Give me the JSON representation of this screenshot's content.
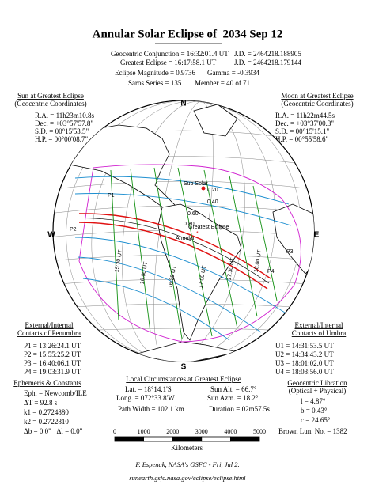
{
  "title": "Annular Solar Eclipse of  2034 Sep 12",
  "header": {
    "conjunction": "Geocentric Conjunction = 16:32:01.4 UT",
    "conjunction_jd": "J.D. = 2464218.188905",
    "greatest": "Greatest Eclipse = 16:17:58.1 UT",
    "greatest_jd": "J.D. = 2464218.179144",
    "magnitude": "Eclipse Magnitude = 0.9736",
    "gamma": "Gamma = -0.3934",
    "saros": "Saros Series = 135",
    "member": "Member = 40 of 71"
  },
  "sun": {
    "title": "Sun at Greatest Eclipse",
    "subtitle": "(Geocentric Coordinates)",
    "lines": [
      "R.A. = 11h23m10.8s",
      "Dec. = +03°57'57.8\"",
      "S.D. = 00°15'53.5\"",
      "H.P. = 00°00'08.7\""
    ]
  },
  "moon": {
    "title": "Moon at Greatest Eclipse",
    "subtitle": "(Geocentric Coordinates)",
    "lines": [
      "R.A. = 11h22m44.5s",
      "Dec. = +03°37'00.3\"",
      "S.D. = 00°15'15.1\"",
      "H.P. = 00°55'58.6\""
    ]
  },
  "compass": {
    "n": "N",
    "s": "S",
    "e": "E",
    "w": "W"
  },
  "map_labels": {
    "sub_solar": "Sub Solar",
    "greatest": "Greatest Eclipse",
    "annular": "Annular",
    "p1": "P1",
    "p2": "P2",
    "p3": "P3",
    "p4": "P4",
    "times": [
      "15:30 UT",
      "16:00 UT",
      "16:30 UT",
      "17:00 UT",
      "17:30 UT",
      "18:00 UT"
    ],
    "magnitudes": [
      "0.20",
      "0.40",
      "0.60",
      "0.80"
    ]
  },
  "penumbra": {
    "title": "External/Internal",
    "subtitle": "Contacts of Penumbra",
    "lines": [
      "P1 = 13:26:24.1 UT",
      "P2 = 15:55:25.2 UT",
      "P3 = 16:40:06.1 UT",
      "P4 = 19:03:31.9 UT"
    ]
  },
  "umbra": {
    "title": "External/Internal",
    "subtitle": "Contacts of Umbra",
    "lines": [
      "U1 = 14:31:53.5 UT",
      "U2 = 14:34:43.2 UT",
      "U3 = 18:01:02.0 UT",
      "U4 = 18:03:56.0 UT"
    ]
  },
  "local": {
    "title": "Local Circumstances at Greatest Eclipse",
    "lat": "Lat. = 18°14.1'S",
    "sun_alt": "Sun Alt. = 66.7°",
    "long": "Long. = 072°33.8'W",
    "sun_azm": "Sun Azm. = 18.2°",
    "path_width": "Path Width = 102.1 km",
    "duration": "Duration = 02m57.5s"
  },
  "ephemeris": {
    "title": "Ephemeris & Constants",
    "lines": [
      "Eph. = Newcomb/ILE",
      "ΔT = 92.8 s",
      "k1 = 0.2724880",
      "k2 = 0.2722810",
      "Δb = 0.0\"   Δl = 0.0\""
    ]
  },
  "libration": {
    "title": "Geocentric Libration",
    "subtitle": "(Optical + Physical)",
    "lines": [
      "l = 4.87°",
      "b = 0.43°",
      "c = 24.65°"
    ],
    "brown": "Brown Lun. No. = 1382"
  },
  "scale": {
    "ticks": [
      "0",
      "1000",
      "2000",
      "3000",
      "4000",
      "5000"
    ],
    "unit": "Kilometers"
  },
  "footer": {
    "credit": "F. Espenak, NASA's GSFC - Fri, Jul 2.",
    "url": "sunearth.gsfc.nasa.gov/eclipse/eclipse.html"
  }
}
